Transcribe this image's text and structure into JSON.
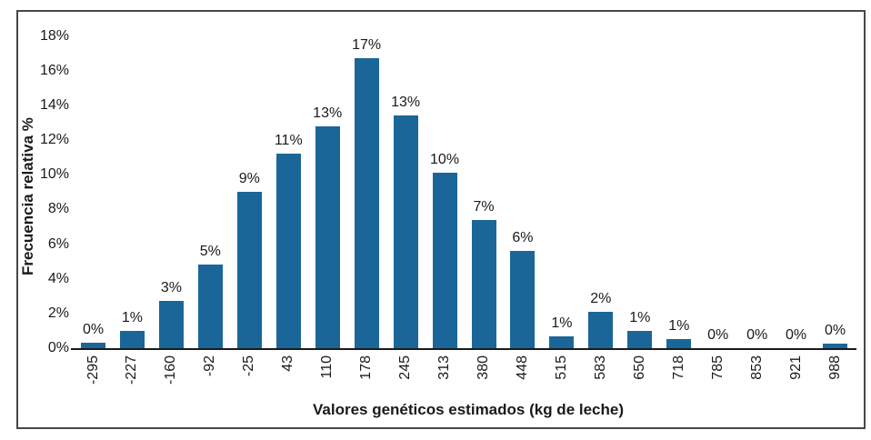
{
  "figure": {
    "background": "#ffffff",
    "frame_color": "#474747"
  },
  "chart_data": {
    "type": "bar",
    "title": "",
    "xlabel": "Valores genéticos estimados (kg de leche)",
    "ylabel": "Frecuencia relativa %",
    "categories": [
      "-295",
      "-227",
      "-160",
      "-92",
      "-25",
      "43",
      "110",
      "178",
      "245",
      "313",
      "380",
      "448",
      "515",
      "583",
      "650",
      "718",
      "785",
      "853",
      "921",
      "988"
    ],
    "values": [
      0.3,
      1.0,
      2.7,
      4.8,
      9.0,
      11.2,
      12.8,
      16.7,
      13.4,
      10.1,
      7.4,
      5.6,
      0.7,
      2.1,
      1.0,
      0.5,
      0,
      0,
      0,
      0.25
    ],
    "bar_labels": [
      "0%",
      "1%",
      "3%",
      "5%",
      "9%",
      "11%",
      "13%",
      "17%",
      "13%",
      "10%",
      "7%",
      "6%",
      "1%",
      "2%",
      "1%",
      "1%",
      "0%",
      "0%",
      "0%",
      "0%"
    ],
    "ylim": [
      0,
      18
    ],
    "y_tick_labels": [
      "0%",
      "2%",
      "4%",
      "6%",
      "8%",
      "10%",
      "12%",
      "14%",
      "16%",
      "18%"
    ],
    "y_tick_values": [
      0,
      2,
      4,
      6,
      8,
      10,
      12,
      14,
      16,
      18
    ],
    "grid": false,
    "legend": false,
    "bar_color": "#1a6698",
    "axis_color": "#1a1a1a",
    "text_color": "#1a1a1a"
  }
}
